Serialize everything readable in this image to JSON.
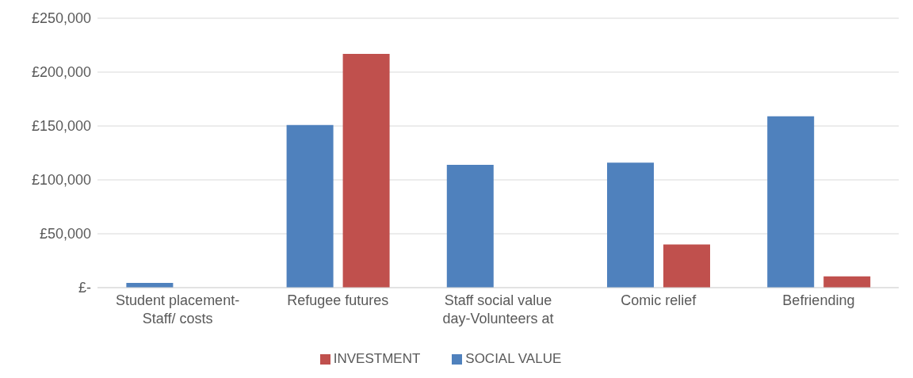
{
  "chart_data": {
    "type": "bar",
    "categories": [
      "Student placement-Staff/ costs",
      "Refugee futures",
      "Staff social value day-Volunteers at",
      "Comic relief",
      "Befriending"
    ],
    "series": [
      {
        "name": "SOCIAL VALUE",
        "color": "#4f81bd",
        "values": [
          4500,
          151000,
          114000,
          116000,
          159000
        ]
      },
      {
        "name": "INVESTMENT",
        "color": "#c0504d",
        "values": [
          0,
          217000,
          0,
          40000,
          10500
        ]
      }
    ],
    "ylim": [
      0,
      250000
    ],
    "yticks": [
      {
        "value": 0,
        "label": "£-"
      },
      {
        "value": 50000,
        "label": "£50,000"
      },
      {
        "value": 100000,
        "label": "£100,000"
      },
      {
        "value": 150000,
        "label": "£150,000"
      },
      {
        "value": 200000,
        "label": "£200,000"
      },
      {
        "value": 250000,
        "label": "£250,000"
      }
    ],
    "grid": "y",
    "legend": "bottom"
  }
}
